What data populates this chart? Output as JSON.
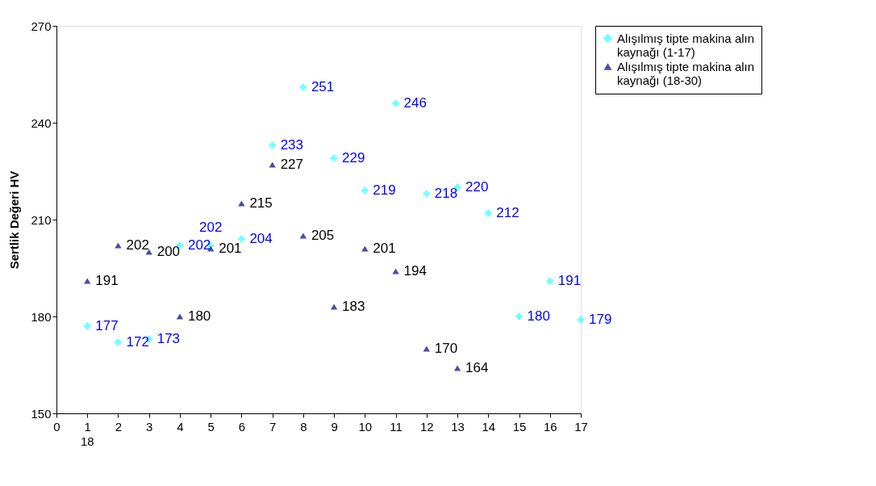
{
  "chart_data": {
    "type": "scatter",
    "ylabel": "Sertlik Değeri HV",
    "xlim": [
      0,
      17
    ],
    "xticks": [
      0,
      1,
      2,
      3,
      4,
      5,
      6,
      7,
      8,
      9,
      10,
      11,
      12,
      13,
      14,
      15,
      16,
      17
    ],
    "ylim": [
      150,
      270
    ],
    "yticks": [
      150,
      180,
      210,
      240,
      270
    ],
    "grid": false,
    "legend": "top right",
    "data_labels": true,
    "annotations": [
      "18"
    ],
    "series": [
      {
        "name": "Alışılmış tipte makina alın kaynağı (1-17)",
        "color": "#33ffff",
        "marker": "cross",
        "x": [
          1,
          2,
          3,
          4,
          5,
          6,
          7,
          8,
          9,
          10,
          11,
          12,
          13,
          14,
          15,
          16,
          17
        ],
        "values": [
          177,
          172,
          173,
          202,
          202,
          204,
          233,
          251,
          229,
          219,
          246,
          218,
          220,
          212,
          180,
          191,
          179
        ]
      },
      {
        "name": "Alışılmış tipte makina alın kaynağı (18-30)",
        "color": "#000080",
        "marker": "triangle",
        "x": [
          1,
          2,
          3,
          4,
          5,
          6,
          7,
          8,
          9,
          10,
          11,
          12,
          13
        ],
        "values": [
          191,
          202,
          200,
          180,
          201,
          215,
          227,
          205,
          183,
          201,
          194,
          170,
          164
        ]
      }
    ]
  }
}
